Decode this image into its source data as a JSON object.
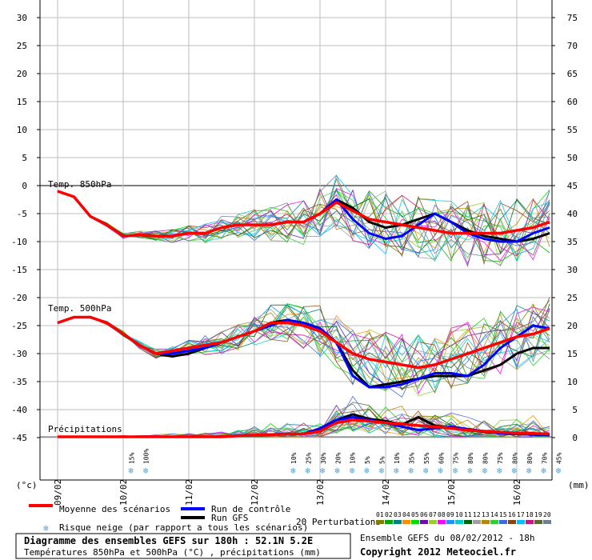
{
  "chart_data": {
    "type": "line",
    "title": "Diagramme des ensembles GEFS sur 180h : 52.1N 5.2E",
    "subtitle": "Températures 850hPa et 500hPa (°C) , précipitations (mm)",
    "left_axis_label": "(°c)",
    "right_axis_label": "(mm)",
    "left_ticks": [
      30,
      25,
      20,
      15,
      10,
      5,
      0,
      -5,
      -10,
      -15,
      -20,
      -25,
      -30,
      -35,
      -40,
      -45
    ],
    "right_ticks": [
      75,
      70,
      65,
      60,
      55,
      50,
      45,
      40,
      35,
      30,
      25,
      20,
      15,
      10,
      5,
      0
    ],
    "ylim": [
      -50,
      32
    ],
    "x_hours": [
      0,
      6,
      12,
      18,
      24,
      30,
      36,
      42,
      48,
      54,
      60,
      66,
      72,
      78,
      84,
      90,
      96,
      102,
      108,
      114,
      120,
      126,
      132,
      138,
      144,
      150,
      156,
      162,
      168,
      174,
      180
    ],
    "date_labels": [
      "09/02",
      "10/02",
      "11/02",
      "12/02",
      "13/02",
      "14/02",
      "15/02",
      "16/02"
    ],
    "section_labels": {
      "t850": "Temp. 850hPa",
      "t500": "Temp. 500hPa",
      "precip": "Précipitations"
    },
    "snow_risk": [
      {
        "hour": 18,
        "label": "15%"
      },
      {
        "hour": 24,
        "label": "100%"
      },
      {
        "hour": 84,
        "label": "10%"
      },
      {
        "hour": 90,
        "label": "25%"
      },
      {
        "hour": 96,
        "label": "30%"
      },
      {
        "hour": 102,
        "label": "20%"
      },
      {
        "hour": 108,
        "label": "10%"
      },
      {
        "hour": 114,
        "label": "5%"
      },
      {
        "hour": 120,
        "label": "5%"
      },
      {
        "hour": 126,
        "label": "10%"
      },
      {
        "hour": 132,
        "label": "35%"
      },
      {
        "hour": 138,
        "label": "55%"
      },
      {
        "hour": 144,
        "label": "60%"
      },
      {
        "hour": 150,
        "label": "75%"
      },
      {
        "hour": 156,
        "label": "80%"
      },
      {
        "hour": 162,
        "label": "80%"
      },
      {
        "hour": 168,
        "label": "75%"
      },
      {
        "hour": 174,
        "label": "80%"
      },
      {
        "hour": 180,
        "label": "80%"
      },
      {
        "hour": 186,
        "label": "70%"
      },
      {
        "hour": 192,
        "label": "45%"
      }
    ],
    "series": [
      {
        "name": "Moyenne des scénarios",
        "color": "#ff0000",
        "t850": [
          -1,
          -2,
          -5.5,
          -7,
          -9,
          -8.8,
          -9,
          -9,
          -8.5,
          -8.5,
          -7.5,
          -7,
          -7,
          -7,
          -6.5,
          -6.5,
          -5,
          -3,
          -4.5,
          -6,
          -6.5,
          -7,
          -7.5,
          -8,
          -8.5,
          -8.5,
          -8.5,
          -8.5,
          -8,
          -7.5,
          -6.5
        ],
        "t500": [
          -24.5,
          -23.5,
          -23.5,
          -24.5,
          -26.5,
          -28.5,
          -30,
          -29.5,
          -29,
          -28.5,
          -28,
          -27,
          -26,
          -24.5,
          -24.5,
          -25,
          -26,
          -28,
          -30,
          -31,
          -31.5,
          -32,
          -32.5,
          -32,
          -31,
          -30,
          -29,
          -28,
          -27,
          -26.5,
          -25.5
        ],
        "precip": [
          0,
          0,
          0,
          0,
          0,
          0,
          0,
          0,
          0,
          0,
          0,
          0.2,
          0.3,
          0.4,
          0.5,
          0.5,
          1,
          2.5,
          3,
          2.8,
          2.5,
          2.3,
          2,
          1.8,
          1.5,
          1.2,
          1,
          0.8,
          0.7,
          0.6,
          0.5
        ]
      },
      {
        "name": "Run de contrôle",
        "color": "#0000ff",
        "t850": [
          -1,
          -2,
          -5.5,
          -7,
          -9,
          -8.8,
          -9,
          -9,
          -8.5,
          -8.5,
          -7.5,
          -7,
          -7,
          -7,
          -6.5,
          -6.5,
          -5,
          -2.5,
          -6,
          -8.5,
          -9.5,
          -9,
          -7,
          -5,
          -6.5,
          -8.5,
          -9.5,
          -10,
          -10,
          -8.5,
          -7.5
        ],
        "t500": [
          -24.5,
          -23.5,
          -23.5,
          -24.5,
          -26.5,
          -28.5,
          -30,
          -30,
          -29.5,
          -29,
          -28,
          -27,
          -26,
          -25,
          -24,
          -24.5,
          -25.5,
          -28,
          -34,
          -36,
          -36,
          -35.5,
          -34.5,
          -33.5,
          -33.5,
          -34,
          -32,
          -29,
          -27,
          -25,
          -25.5
        ],
        "precip": [
          0,
          0,
          0,
          0,
          0,
          0,
          0,
          0,
          0,
          0,
          0,
          0.2,
          0.3,
          0.4,
          0.5,
          0.5,
          1.5,
          3,
          3.5,
          3,
          2.5,
          1.8,
          1.2,
          1.5,
          1.8,
          1.4,
          1,
          0.6,
          0.5,
          0.4,
          0.4
        ]
      },
      {
        "name": "Run GFS",
        "color": "#000000",
        "t850": [
          -1,
          -2,
          -5.5,
          -7,
          -9,
          -8.8,
          -9,
          -9,
          -8.5,
          -8.5,
          -7.5,
          -7,
          -7,
          -7,
          -6.5,
          -6.5,
          -5,
          -2.5,
          -4,
          -6.5,
          -7.5,
          -7,
          -6,
          -5,
          -6.5,
          -8,
          -9,
          -9.5,
          -10,
          -9.5,
          -8.5
        ],
        "t500": [
          -24.5,
          -23.5,
          -23.5,
          -24.5,
          -26.5,
          -28.5,
          -30,
          -30.5,
          -30,
          -29,
          -28,
          -27,
          -26,
          -24.5,
          -24,
          -24.5,
          -25.5,
          -28,
          -33,
          -36,
          -35.5,
          -35,
          -34.5,
          -34,
          -34,
          -34,
          -33,
          -32,
          -30,
          -29,
          -29
        ],
        "precip": [
          0,
          0,
          0,
          0,
          0,
          0,
          0,
          0,
          0,
          0,
          0,
          0.2,
          0.3,
          0.4,
          0.5,
          0.5,
          1.5,
          3,
          4,
          3.2,
          2.8,
          2.2,
          3.5,
          2,
          1.5,
          1.2,
          0.9,
          0.6,
          0.5,
          0.4,
          0.3
        ]
      }
    ],
    "perturbations": {
      "label": "20 Perturbations",
      "ids": [
        "01",
        "02",
        "03",
        "04",
        "05",
        "06",
        "07",
        "08",
        "09",
        "10",
        "11",
        "12",
        "13",
        "14",
        "15",
        "16",
        "17",
        "18",
        "19",
        "20"
      ],
      "colors": [
        "#808000",
        "#00aa00",
        "#008080",
        "#ff8c00",
        "#00dd00",
        "#6a0dad",
        "#9acd32",
        "#ff00ff",
        "#1e90ff",
        "#00ced1",
        "#006400",
        "#a0a0a0",
        "#b8860b",
        "#32cd32",
        "#4169e1",
        "#8b4513",
        "#00bfff",
        "#c71585",
        "#556b2f",
        "#708090"
      ]
    },
    "legend": {
      "mean": "Moyenne des scénarios",
      "control": "Run de contrôle",
      "gfs": "Run GFS",
      "snow": "Risque neige (par rapport a tous les scénarios)"
    },
    "footer": {
      "run_info": "Ensemble GEFS du 08/02/2012 - 18h",
      "copyright": "Copyright 2012 Meteociel.fr"
    }
  }
}
